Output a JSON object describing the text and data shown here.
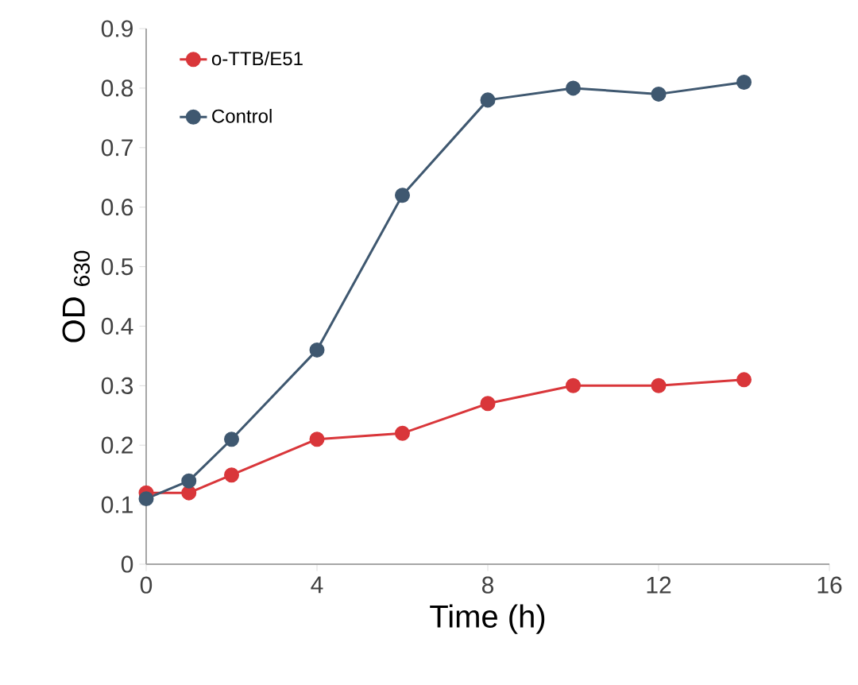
{
  "chart_data": {
    "type": "line",
    "xlabel": "Time (h)",
    "ylabel": "OD $_{630}$",
    "x": [
      0,
      1,
      2,
      4,
      6,
      8,
      10,
      12,
      14
    ],
    "series": [
      {
        "name": "o-TTB/E51",
        "color": "#d9363a",
        "values": [
          0.12,
          0.12,
          0.15,
          0.21,
          0.22,
          0.27,
          0.3,
          0.3,
          0.31
        ]
      },
      {
        "name": "Control",
        "color": "#3f5870",
        "values": [
          0.11,
          0.14,
          0.21,
          0.36,
          0.62,
          0.78,
          0.8,
          0.79,
          0.81
        ]
      }
    ],
    "xlim": [
      0,
      16
    ],
    "xticks": [
      0,
      4,
      8,
      12,
      16
    ],
    "ylim": [
      0,
      0.9
    ],
    "yticks": [
      0,
      0.1,
      0.2,
      0.3,
      0.4,
      0.5,
      0.6,
      0.7,
      0.8,
      0.9
    ],
    "grid": false,
    "legend": "top left",
    "marker": "circle",
    "line_style": "solid"
  }
}
